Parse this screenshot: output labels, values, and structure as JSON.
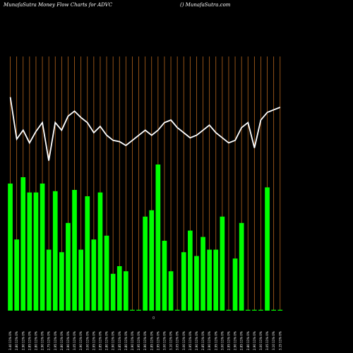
{
  "header": {
    "title": "MunafaSutra  Money Flow  Charts for ADVC",
    "site": "() MunafaSutra.com"
  },
  "chart_data": {
    "type": "bar",
    "zero_label": "0",
    "colors": {
      "bar": "#00ff00",
      "line": "#ffffff",
      "grid": "#b5651d",
      "background": "#000000"
    },
    "categories": [
      "3.40 11% 0%",
      "2.80 11% 0%",
      "2.90 11% 0%",
      "2.85 11% 0%",
      "2.80 11% 0%",
      "2.90 11% 0%",
      "2.75 11% 0%",
      "2.95 11% 0%",
      "2.80 11% 0%",
      "2.90 11% 0%",
      "3.05 11% 0%",
      "2.90 11% 0%",
      "3.00 11% 0%",
      "2.95 11% 0%",
      "2.85 11% 0%",
      "2.80 11% 0%",
      "2.90 11% 0%",
      "2.85 11% 0%",
      "2.80 11% 0%",
      "2.90 11% 0%",
      "2.95 11% 0%",
      "2.90 11% 0%",
      "2.85 11% 0%",
      "2.95 11% 0%",
      "3.00 11% 0%",
      "3.10 11% 0%",
      "3.05 11% 0%",
      "3.00 11% 0%",
      "2.95 11% 0%",
      "2.90 11% 0%",
      "2.85 11% 0%",
      "2.90 11% 0%",
      "2.95 11% 0%",
      "3.00 11% 0%",
      "2.95 11% 0%",
      "2.90 11% 0%",
      "2.85 11% 0%",
      "2.80 11% 0%",
      "2.90 11% 0%",
      "3.00 11% 0%",
      "3.05 11% 0%",
      "3.10 11% 0%",
      "3.15 11% 0%"
    ],
    "values": [
      1.0,
      0.56,
      1.05,
      0.93,
      0.93,
      1.0,
      0.48,
      0.94,
      0.46,
      0.69,
      0.95,
      0.48,
      0.9,
      0.56,
      0.93,
      0.59,
      0.29,
      0.35,
      0.31,
      0.0,
      0.0,
      0.74,
      0.79,
      1.15,
      0.55,
      0.31,
      0.0,
      0.46,
      0.63,
      0.43,
      0.58,
      0.48,
      0.48,
      0.74,
      0.0,
      0.41,
      0.69,
      0.0,
      0.0,
      0.0,
      0.97,
      0.0,
      0.0
    ],
    "line_values": [
      1.68,
      1.35,
      1.42,
      1.32,
      1.41,
      1.48,
      1.18,
      1.48,
      1.42,
      1.53,
      1.57,
      1.52,
      1.48,
      1.4,
      1.45,
      1.38,
      1.34,
      1.33,
      1.3,
      1.34,
      1.38,
      1.42,
      1.38,
      1.42,
      1.48,
      1.5,
      1.44,
      1.4,
      1.36,
      1.38,
      1.42,
      1.46,
      1.4,
      1.36,
      1.32,
      1.34,
      1.44,
      1.48,
      1.28,
      1.5,
      1.56,
      1.58,
      1.6
    ],
    "ylim": [
      0,
      2.0
    ],
    "grid": true
  }
}
